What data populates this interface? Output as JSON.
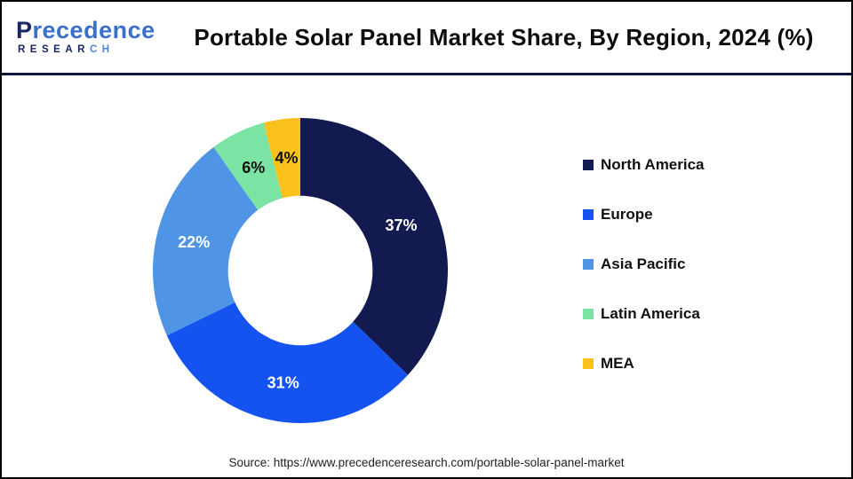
{
  "header": {
    "logo": {
      "name": "Precedence",
      "name_initial": "P",
      "name_rest": "recedence",
      "subtitle_main": "RESEAR",
      "subtitle_accent": "CH"
    },
    "title": "Portable Solar Panel Market Share, By Region, 2024 (%)"
  },
  "chart_data": {
    "type": "pie",
    "subtype": "donut",
    "title": "Portable Solar Panel Market Share, By Region, 2024 (%)",
    "unit": "%",
    "start_angle_deg": 0,
    "direction": "clockwise",
    "donut_hole_ratio": 0.49,
    "legend_position": "right",
    "series": [
      {
        "label": "North America",
        "value": 37,
        "value_label": "37%",
        "color": "#131A4F",
        "value_label_color": "#FFFFFF"
      },
      {
        "label": "Europe",
        "value": 31,
        "value_label": "31%",
        "color": "#1453EF",
        "value_label_color": "#FFFFFF"
      },
      {
        "label": "Asia Pacific",
        "value": 22,
        "value_label": "22%",
        "color": "#5095E5",
        "value_label_color": "#FFFFFF"
      },
      {
        "label": "Latin America",
        "value": 6,
        "value_label": "6%",
        "color": "#7BE3A4",
        "value_label_color": "#111111"
      },
      {
        "label": "MEA",
        "value": 4,
        "value_label": "4%",
        "color": "#FAC01B",
        "value_label_color": "#111111"
      }
    ]
  },
  "footer": {
    "source": "Source: https://www.precedenceresearch.com/portable-solar-panel-market"
  },
  "theme": {
    "divider_color": "#0E163F",
    "border_color": "#000000",
    "background": "#FFFFFF",
    "title_color": "#0D0D0D",
    "legend_text_color": "#111111"
  }
}
